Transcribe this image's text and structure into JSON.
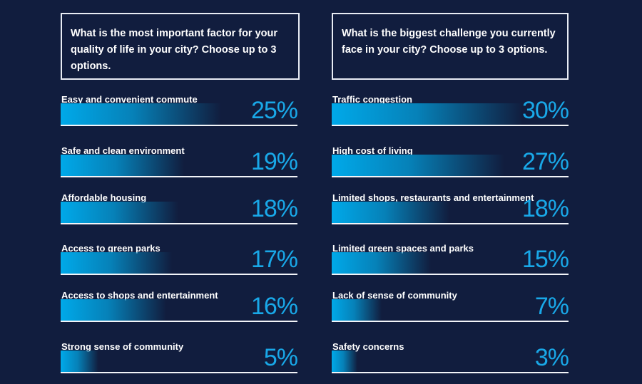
{
  "chart_data": [
    {
      "type": "bar",
      "orientation": "horizontal",
      "title": "What  is the most important factor for your quality of life in your city? Choose up to 3 options.",
      "categories": [
        "Easy and convenient commute",
        "Safe and clean environment",
        "Affordable housing",
        "Access to green parks",
        "Access to shops and entertainment",
        "Strong sense of community"
      ],
      "values": [
        25,
        19,
        18,
        17,
        16,
        5
      ],
      "labels": [
        "25%",
        "19%",
        "18%",
        "17%",
        "16%",
        "5%"
      ],
      "bar_color": "#00a9e9"
    },
    {
      "type": "bar",
      "orientation": "horizontal",
      "title": "What  is  the biggest challenge you currently face in your city? Choose up to 3 options.",
      "categories": [
        "Traffic congestion",
        "High cost of living",
        "Limited shops, restaurants and entertainment",
        "Limited green spaces and parks",
        "Lack of sense of community",
        "Safety concerns"
      ],
      "values": [
        30,
        27,
        18,
        15,
        7,
        3
      ],
      "labels": [
        "30%",
        "27%",
        "18%",
        "15%",
        "7%",
        "3%"
      ],
      "bar_color": "#00a9e9"
    }
  ],
  "colors": {
    "background": "#111d3e",
    "accent": "#19a8e8"
  }
}
